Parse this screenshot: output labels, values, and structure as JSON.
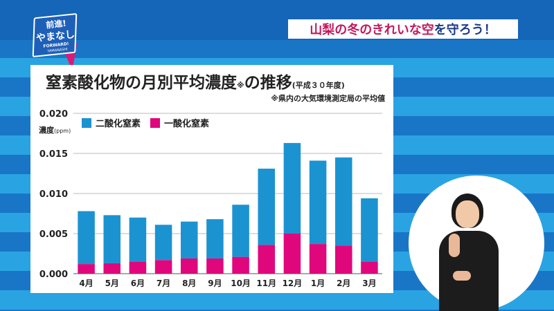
{
  "logo": {
    "line1": "前進!",
    "line2": "やまなし",
    "line3": "FORWARD!",
    "line4": "YAMANASHI"
  },
  "banner": {
    "highlight": "山梨の冬のきれいな空",
    "rest": "を守ろう！"
  },
  "chart_data": {
    "type": "bar",
    "stacked": true,
    "title": "窒素酸化物の月別平均濃度",
    "title_note": "※",
    "title_suffix": "の推移",
    "title_year": "(平成３０年度)",
    "subtitle": "※県内の大気環境測定局の平均値",
    "ylabel": "濃度",
    "ylabel_unit": "(ppm)",
    "ylim": [
      0,
      0.02
    ],
    "yticks": [
      "0.000",
      "0.005",
      "0.010",
      "0.015",
      "0.020"
    ],
    "grid": true,
    "legend_position": "top-left",
    "categories": [
      "4月",
      "5月",
      "6月",
      "7月",
      "8月",
      "9月",
      "10月",
      "11月",
      "12月",
      "1月",
      "2月",
      "3月"
    ],
    "series": [
      {
        "name": "二酸化窒素",
        "color": "#1b93d1",
        "values": [
          0.0066,
          0.006,
          0.0055,
          0.0044,
          0.0046,
          0.0049,
          0.0065,
          0.0095,
          0.0113,
          0.0104,
          0.011,
          0.0079
        ]
      },
      {
        "name": "一酸化窒素",
        "color": "#e0077c",
        "values": [
          0.0012,
          0.0013,
          0.0015,
          0.0017,
          0.0019,
          0.0019,
          0.0021,
          0.0036,
          0.005,
          0.0037,
          0.0035,
          0.0015
        ]
      }
    ]
  }
}
